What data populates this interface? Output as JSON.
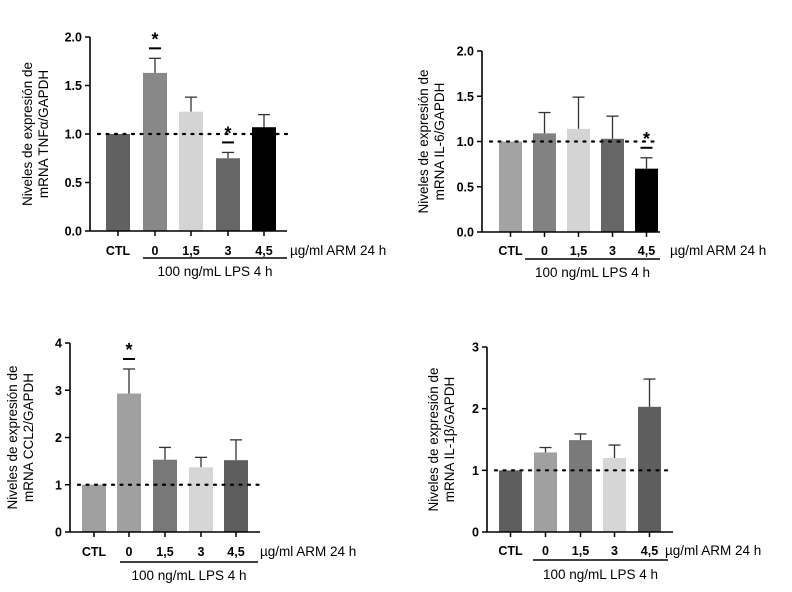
{
  "chart_data": [
    {
      "type": "bar",
      "ylabel": [
        "Niveles de expresión de",
        "mRNA TNFα/GAPDH"
      ],
      "categories": [
        "CTL",
        "0",
        "1,5",
        "3",
        "4,5"
      ],
      "values": [
        1.0,
        1.63,
        1.23,
        0.75,
        1.07
      ],
      "error_upper": [
        1.0,
        1.78,
        1.38,
        0.81,
        1.2
      ],
      "significance": [
        "",
        "*",
        "",
        "*",
        ""
      ],
      "colors": [
        "#616161",
        "#888888",
        "#d4d4d4",
        "#666666",
        "#000000"
      ],
      "ylim": [
        0,
        2.0
      ],
      "yticks": [
        0,
        0.5,
        1.0,
        1.5,
        2.0
      ],
      "ytick_labels": [
        "0.0",
        "0.5",
        "1.0",
        "1.5",
        "2.0"
      ],
      "reference_line": 1.0,
      "unit_label": "µg/ml  ARM 24 h",
      "group_label": "100 ng/mL LPS 4 h"
    },
    {
      "type": "bar",
      "ylabel": [
        "Niveles de expresión de",
        "mRNA IL-6/GAPDH"
      ],
      "categories": [
        "CTL",
        "0",
        "1,5",
        "3",
        "4,5"
      ],
      "values": [
        1.0,
        1.09,
        1.14,
        1.03,
        0.7
      ],
      "error_upper": [
        1.0,
        1.32,
        1.49,
        1.28,
        0.82
      ],
      "significance": [
        "",
        "",
        "",
        "",
        "*"
      ],
      "colors": [
        "#a3a3a3",
        "#828282",
        "#d4d4d4",
        "#666666",
        "#000000"
      ],
      "ylim": [
        0,
        2.0
      ],
      "yticks": [
        0,
        0.5,
        1.0,
        1.5,
        2.0
      ],
      "ytick_labels": [
        "0.0",
        "0.5",
        "1.0",
        "1.5",
        "2.0"
      ],
      "reference_line": 1.0,
      "unit_label": "µg/ml ARM 24 h",
      "group_label": "100 ng/mL LPS 4 h"
    },
    {
      "type": "bar",
      "ylabel": [
        "Niveles de expresión de",
        "mRNA CCL2/GAPDH"
      ],
      "categories": [
        "CTL",
        "0",
        "1,5",
        "3",
        "4,5"
      ],
      "values": [
        1.0,
        2.93,
        1.53,
        1.37,
        1.52
      ],
      "error_upper": [
        1.0,
        3.45,
        1.79,
        1.58,
        1.95
      ],
      "significance": [
        "",
        "*",
        "",
        "",
        ""
      ],
      "colors": [
        "#a0a0a0",
        "#a0a0a0",
        "#787878",
        "#d6d6d6",
        "#5e5e5e"
      ],
      "ylim": [
        0,
        4
      ],
      "yticks": [
        0,
        1,
        2,
        3,
        4
      ],
      "ytick_labels": [
        "0",
        "1",
        "2",
        "3",
        "4"
      ],
      "reference_line": 1.0,
      "unit_label": "µg/ml  ARM 24 h",
      "group_label": "100 ng/mL LPS 4 h"
    },
    {
      "type": "bar",
      "ylabel": [
        "Niveles de expresión de",
        "mRNA IL-1β/GAPDH"
      ],
      "categories": [
        "CTL",
        "0",
        "1,5",
        "3",
        "4,5"
      ],
      "values": [
        1.0,
        1.29,
        1.49,
        1.2,
        2.03
      ],
      "error_upper": [
        1.0,
        1.37,
        1.59,
        1.41,
        2.48
      ],
      "significance": [
        "",
        "",
        "",
        "",
        ""
      ],
      "colors": [
        "#5e5e5e",
        "#a0a0a0",
        "#7a7a7a",
        "#d6d6d6",
        "#5e5e5e"
      ],
      "ylim": [
        0,
        3
      ],
      "yticks": [
        0,
        1,
        2,
        3
      ],
      "ytick_labels": [
        "0",
        "1",
        "2",
        "3"
      ],
      "reference_line": 1.0,
      "unit_label": "µg/ml  ARM 24 h",
      "group_label": "100 ng/mL LPS 4 h"
    }
  ]
}
